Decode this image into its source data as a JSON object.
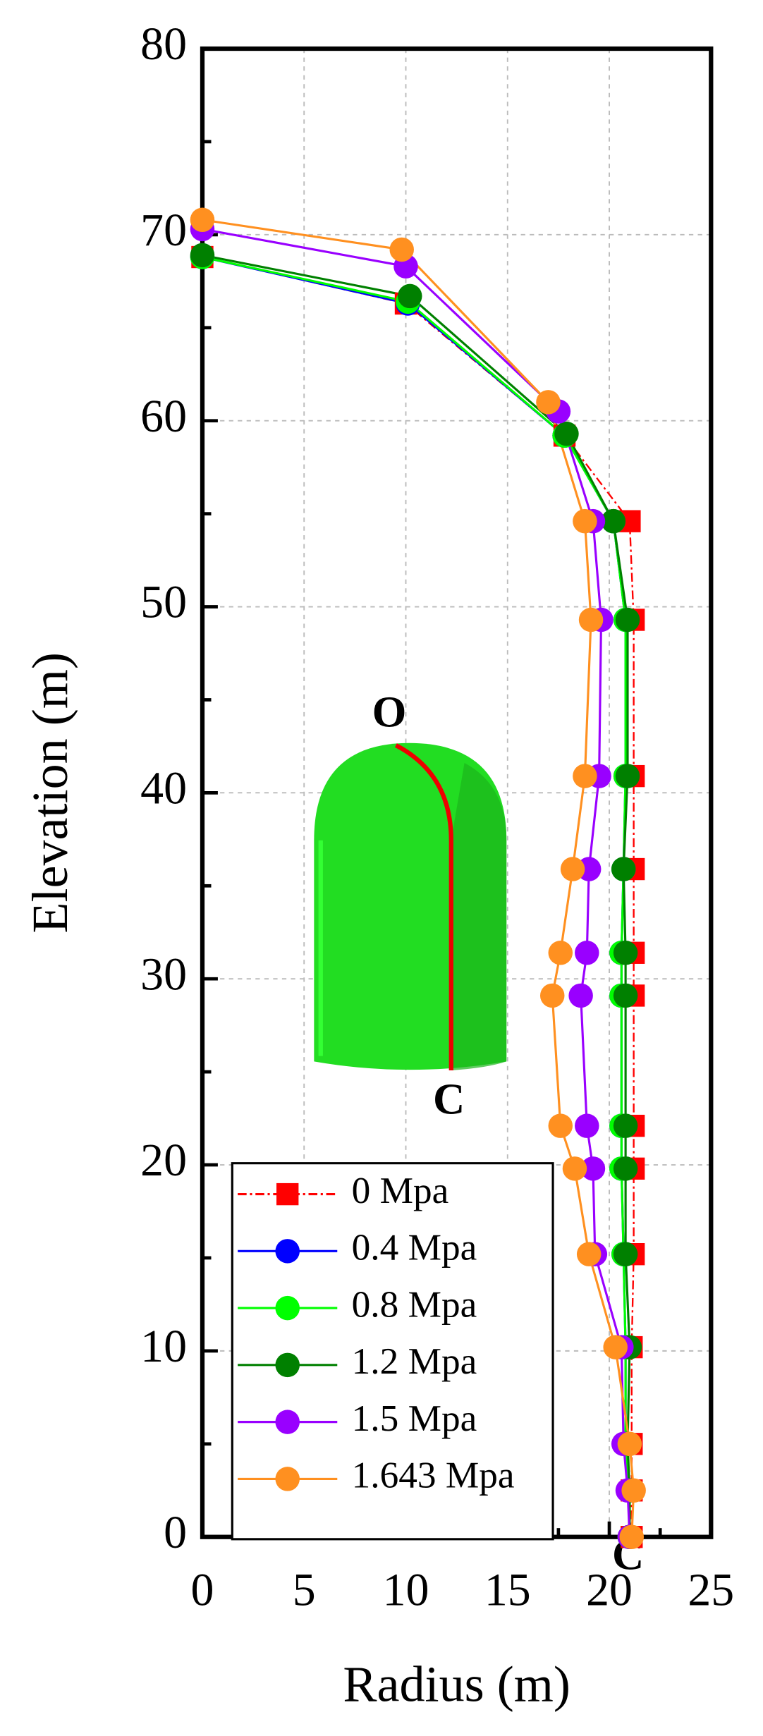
{
  "chart_data": {
    "type": "line",
    "xlabel": "Radius (m)",
    "ylabel": "Elevation (m)",
    "xlim": [
      0,
      25
    ],
    "ylim": [
      0,
      80
    ],
    "xticks": [
      0,
      5,
      10,
      15,
      20,
      25
    ],
    "yticks": [
      0,
      10,
      20,
      30,
      40,
      50,
      60,
      70,
      80
    ],
    "xminorticks": [
      2.5,
      7.5,
      12.5,
      17.5,
      22.5
    ],
    "yminorticks": [
      5,
      15,
      25,
      35,
      45,
      55,
      65,
      75
    ],
    "grid": true,
    "legend": "lower left",
    "annotations": [
      "O",
      "C",
      "C"
    ],
    "series": [
      {
        "name": "0 Mpa",
        "color": "#ff0000",
        "marker": "square",
        "dash": "dashdot",
        "x": [
          21.1,
          21.1,
          21.1,
          21.1,
          21.2,
          21.2,
          21.2,
          21.2,
          21.2,
          21.2,
          21.2,
          21.2,
          21.0,
          17.8,
          10.0,
          0
        ],
        "y": [
          0,
          2.5,
          5,
          10.2,
          15.2,
          19.8,
          22.1,
          29.1,
          31.4,
          35.9,
          40.9,
          49.3,
          54.6,
          59.2,
          66.3,
          68.8
        ]
      },
      {
        "name": "0.4 Mpa",
        "color": "#0000ff",
        "marker": "circle",
        "x": [
          21.0,
          21.0,
          20.8,
          20.8,
          20.7,
          20.6,
          20.6,
          20.6,
          20.6,
          20.7,
          20.8,
          20.8,
          20.2,
          17.8,
          10.1,
          0
        ],
        "y": [
          0,
          2.5,
          5,
          10.2,
          15.2,
          19.8,
          22.1,
          29.1,
          31.4,
          35.9,
          40.9,
          49.3,
          54.6,
          59.2,
          66.3,
          68.8
        ]
      },
      {
        "name": "0.8 Mpa",
        "color": "#00ff00",
        "marker": "circle",
        "x": [
          21.0,
          21.0,
          20.8,
          20.8,
          20.7,
          20.6,
          20.6,
          20.6,
          20.6,
          20.7,
          20.8,
          20.8,
          20.2,
          17.8,
          10.1,
          0
        ],
        "y": [
          0,
          2.5,
          5,
          10.2,
          15.2,
          19.8,
          22.1,
          29.1,
          31.4,
          35.9,
          40.9,
          49.3,
          54.6,
          59.2,
          66.4,
          68.8
        ]
      },
      {
        "name": "1.2 Mpa",
        "color": "#008000",
        "marker": "circle",
        "x": [
          21.0,
          21.0,
          20.9,
          21.0,
          20.8,
          20.8,
          20.8,
          20.8,
          20.8,
          20.7,
          20.9,
          20.9,
          20.2,
          17.9,
          10.2,
          0
        ],
        "y": [
          0,
          2.5,
          5,
          10.2,
          15.2,
          19.8,
          22.1,
          29.1,
          31.4,
          35.9,
          40.9,
          49.3,
          54.6,
          59.3,
          66.7,
          68.9
        ]
      },
      {
        "name": "1.5 Mpa",
        "color": "#9900ff",
        "marker": "circle",
        "x": [
          21.0,
          20.9,
          20.7,
          20.6,
          19.3,
          19.2,
          18.9,
          18.6,
          18.9,
          19.0,
          19.5,
          19.6,
          19.2,
          17.5,
          10.0,
          0
        ],
        "y": [
          0,
          2.5,
          5,
          10.2,
          15.2,
          19.8,
          22.1,
          29.1,
          31.4,
          35.9,
          40.9,
          49.3,
          54.6,
          60.5,
          68.3,
          70.3
        ]
      },
      {
        "name": "1.643 Mpa",
        "color": "#ff9020",
        "marker": "circle",
        "x": [
          21.1,
          21.2,
          21.0,
          20.3,
          19.0,
          18.3,
          17.6,
          17.2,
          17.6,
          18.2,
          18.8,
          19.1,
          18.8,
          17.0,
          9.8,
          0
        ],
        "y": [
          0,
          2.5,
          5,
          10.2,
          15.2,
          19.8,
          22.1,
          29.1,
          31.4,
          35.9,
          40.9,
          49.3,
          54.6,
          61.0,
          69.2,
          70.8
        ]
      }
    ]
  }
}
